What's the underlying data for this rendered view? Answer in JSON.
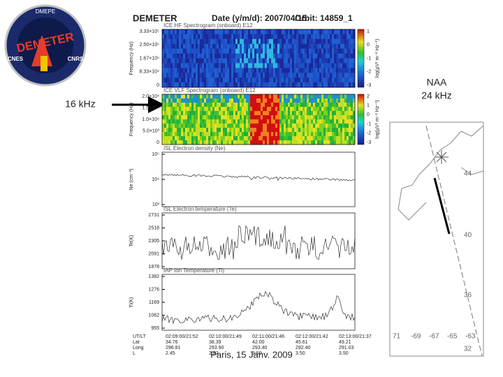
{
  "logo": {
    "top": "DMEPE",
    "name": "DEMETER",
    "left": "CNES",
    "right": "CNRS"
  },
  "header": {
    "instrument": "DEMETER",
    "date": "Date (y/m/d): 2007/04/15",
    "orbit": "Orbit: 14859_1"
  },
  "panels": [
    {
      "title": "ICE HF Spectrogram (onboard) E12",
      "ylabel": "Frequency (Hz)",
      "yticks": [
        "3.33×10⁵",
        "2.50×10⁵",
        "1.67×10⁵",
        "8.33×10⁴",
        "0"
      ],
      "colorbar_label": "log(µV² m⁻² Hz⁻¹)",
      "colorbar_ticks": [
        "1",
        "0",
        "-1",
        "-2",
        "-3"
      ]
    },
    {
      "title": "ICE VLF Spectrogram (onboard) E12",
      "ylabel": "Frequency (Hz)",
      "yticks": [
        "2.0×10⁴",
        "1.5×10⁴",
        "1.0×10⁴",
        "5.0×10³",
        "0"
      ],
      "colorbar_label": "log(µV² m⁻² Hz⁻¹)",
      "colorbar_ticks": [
        "2",
        "1",
        "0",
        "-1",
        "-2",
        "-3"
      ]
    },
    {
      "title": "ISL Electron density (Ne)",
      "ylabel": "Ne (cm⁻³)",
      "yticks": [
        "10⁵",
        "10⁴",
        "10³"
      ]
    },
    {
      "title": "ISL Electron temperature (Te)",
      "ylabel": "Te(K)",
      "yticks": [
        "2731",
        "2518",
        "2305",
        "2091",
        "1878"
      ]
    },
    {
      "title": "IAP Ion Temperature (Ti)",
      "ylabel": "Ti(K)",
      "yticks": [
        "1382",
        "1276",
        "1169",
        "1062",
        "955"
      ]
    }
  ],
  "table": {
    "row_labels": [
      "UT/LT",
      "Lat",
      "Long",
      "L"
    ],
    "columns": [
      [
        "02:09:00/21:52",
        "34.76",
        "296.81",
        "2.45"
      ],
      [
        "02:10:00/21:49",
        "38.39",
        "293.90",
        "2.82"
      ],
      [
        "02:11:00/21:46",
        "42.00",
        "293.40",
        "3.50"
      ],
      [
        "02:12:00/21:42",
        "45.61",
        "292.40",
        "3.50"
      ],
      [
        "02:13:00/21:37",
        "49.21",
        "291.03",
        "3.50"
      ]
    ]
  },
  "annotations": {
    "left": "16 kHz",
    "right_line1": "NAA",
    "right_line2": "24 kHz"
  },
  "map": {
    "lat_labels": [
      "44",
      "40",
      "36",
      "32"
    ],
    "lon_labels": [
      "71",
      "-69",
      "-67",
      "-65",
      "-63"
    ]
  },
  "footer": "Paris, 15 Janv. 2009"
}
